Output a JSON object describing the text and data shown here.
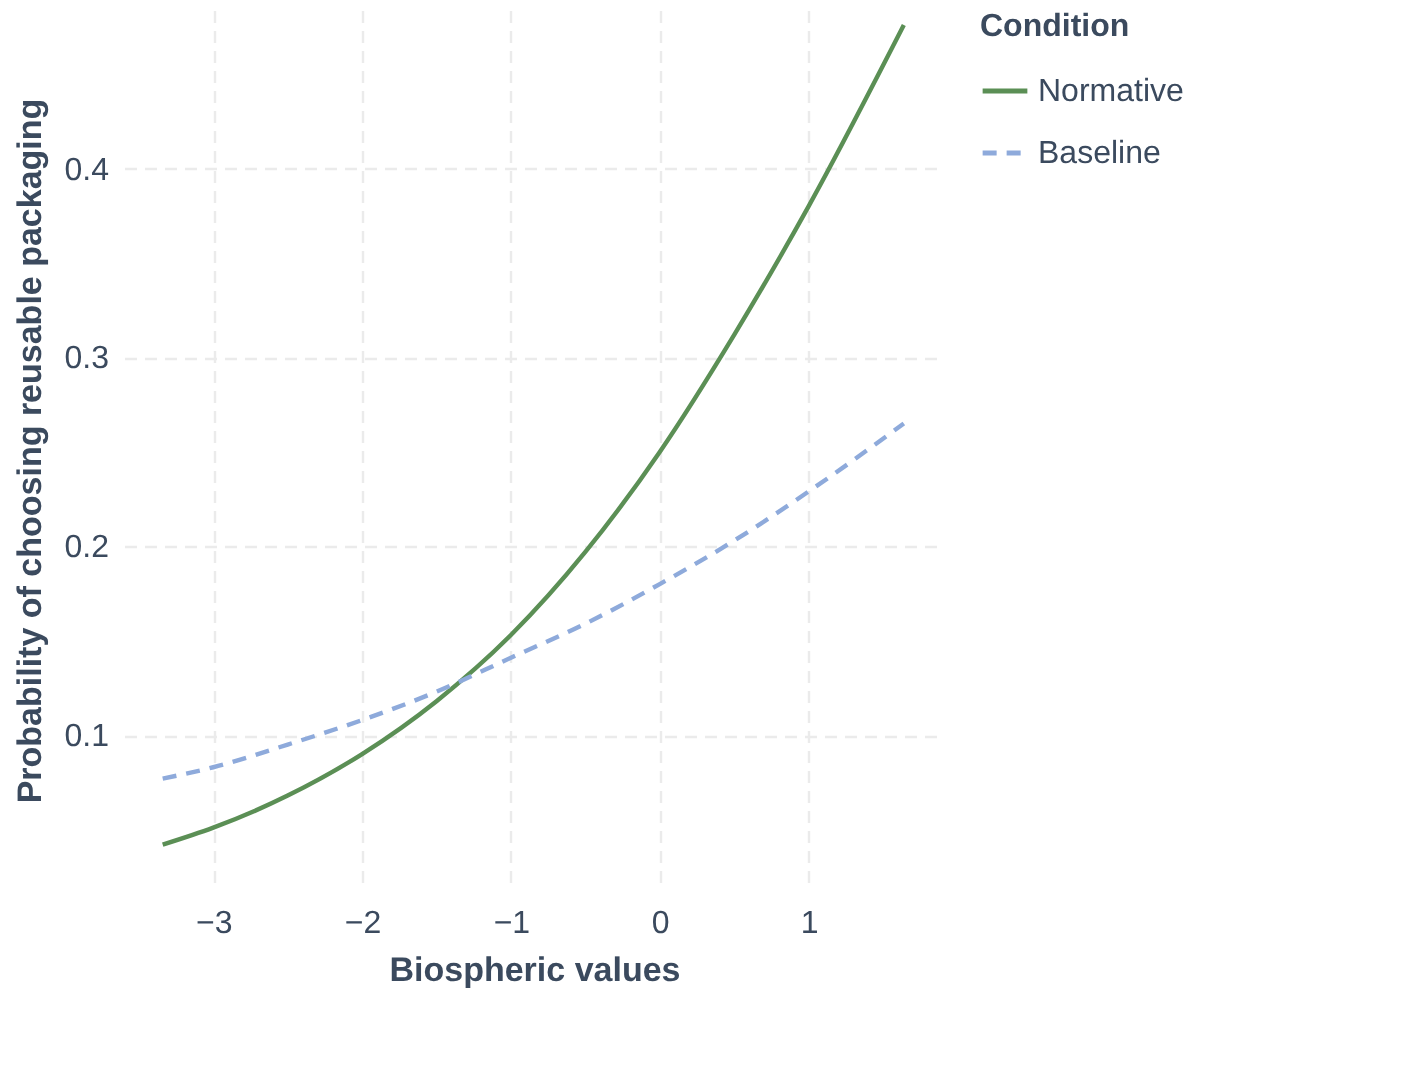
{
  "chart_data": {
    "type": "line",
    "xlabel": "Biospheric values",
    "ylabel": "Probability of choosing reusable packaging",
    "legend_title": "Condition",
    "legend": "right",
    "grid": true,
    "xlim": [
      -3.6,
      1.91
    ],
    "ylim": [
      0.018,
      0.484
    ],
    "xticks": [
      -3,
      -2,
      -1,
      0,
      1
    ],
    "yticks": [
      0.1,
      0.2,
      0.3,
      0.4
    ],
    "x": [
      -3.34,
      -3,
      -2.5,
      -2,
      -1.5,
      -1,
      -0.5,
      0,
      0.5,
      1,
      1.64
    ],
    "series": [
      {
        "name": "Normative",
        "color": "#5b8f55",
        "line_style": "solid",
        "values": [
          0.042,
          0.051,
          0.068,
          0.09,
          0.118,
          0.153,
          0.197,
          0.25,
          0.312,
          0.38,
          0.476
        ]
      },
      {
        "name": "Baseline",
        "color": "#8eaadb",
        "line_style": "dashed",
        "values": [
          0.077,
          0.083,
          0.095,
          0.108,
          0.123,
          0.141,
          0.159,
          0.18,
          0.203,
          0.229,
          0.265
        ]
      }
    ]
  }
}
